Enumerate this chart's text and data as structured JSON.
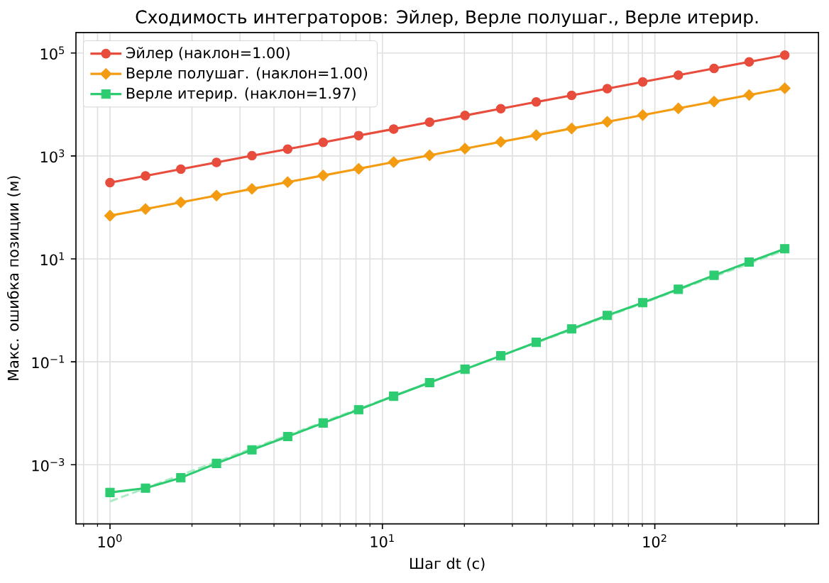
{
  "chart_data": {
    "type": "line",
    "title": "Сходимость интеграторов: Эйлер, Верле полушаг., Верле итерир.",
    "xlabel": "Шаг dt (с)",
    "ylabel": "Макс. ошибка позиции (м)",
    "log": "xy",
    "x": [
      1,
      1.35,
      1.82,
      2.46,
      3.32,
      4.49,
      6.06,
      8.18,
      11.0,
      14.9,
      20.1,
      27.2,
      36.7,
      49.5,
      66.9,
      90.3,
      122,
      165,
      222,
      300
    ],
    "xlim": [
      0.75,
      399
    ],
    "ylim": [
      7.1e-05,
      250000
    ],
    "xticks": [
      {
        "value": 0.8,
        "label": null
      },
      {
        "value": 0.9,
        "label": null
      },
      {
        "value": 1,
        "label": "10$^{0}$"
      },
      {
        "value": 2,
        "label": null
      },
      {
        "value": 3,
        "label": null
      },
      {
        "value": 4,
        "label": null
      },
      {
        "value": 5,
        "label": null
      },
      {
        "value": 6,
        "label": null
      },
      {
        "value": 7,
        "label": null
      },
      {
        "value": 8,
        "label": null
      },
      {
        "value": 9,
        "label": null
      },
      {
        "value": 10,
        "label": "10$^{1}$"
      },
      {
        "value": 20,
        "label": null
      },
      {
        "value": 30,
        "label": null
      },
      {
        "value": 40,
        "label": null
      },
      {
        "value": 50,
        "label": null
      },
      {
        "value": 60,
        "label": null
      },
      {
        "value": 70,
        "label": null
      },
      {
        "value": 80,
        "label": null
      },
      {
        "value": 90,
        "label": null
      },
      {
        "value": 100,
        "label": "10$^{2}$"
      },
      {
        "value": 200,
        "label": null
      },
      {
        "value": 300,
        "label": null
      }
    ],
    "yticks": [
      {
        "value": 0.001,
        "label": "10$^{−3}$"
      },
      {
        "value": 0.1,
        "label": "10$^{−1}$"
      },
      {
        "value": 10,
        "label": "10$^{1}$"
      },
      {
        "value": 1000,
        "label": "10$^{3}$"
      },
      {
        "value": 100000,
        "label": "10$^{5}$"
      }
    ],
    "grid": true,
    "legend": "top left",
    "series": [
      {
        "name": "Эйлер (наклон=1.00)",
        "color": "#e74c3c",
        "marker": "circle",
        "line_style": "solid",
        "values": [
          304,
          410,
          553,
          748,
          1010,
          1360,
          1840,
          2490,
          3340,
          4530,
          6110,
          8270,
          11200,
          15000,
          20300,
          27500,
          37100,
          50200,
          67500,
          91200
        ]
      },
      {
        "name": "Верле полушаг. (наклон=1.00)",
        "color": "#f39c12",
        "marker": "diamond",
        "line_style": "solid",
        "values": [
          69.0,
          93.2,
          126,
          170,
          229,
          310,
          418,
          564,
          759,
          1030,
          1390,
          1880,
          2530,
          3420,
          4620,
          6230,
          8420,
          11400,
          15300,
          20700
        ]
      },
      {
        "type": "line",
        "color": "#abebc6",
        "marker": "none",
        "line_style": "dashed",
        "x": [
          1,
          300
        ],
        "values": [
          0.000194,
          14.7
        ]
      },
      {
        "name": "Верле итерир. (наклон=1.97)",
        "color": "#2ecc71",
        "marker": "square",
        "line_style": "solid",
        "values": [
          0.000289,
          0.000351,
          0.000558,
          0.00106,
          0.00195,
          0.00353,
          0.00647,
          0.0117,
          0.0215,
          0.0393,
          0.0716,
          0.131,
          0.239,
          0.436,
          0.798,
          1.41,
          2.57,
          4.8,
          8.69,
          15.7
        ]
      }
    ]
  }
}
